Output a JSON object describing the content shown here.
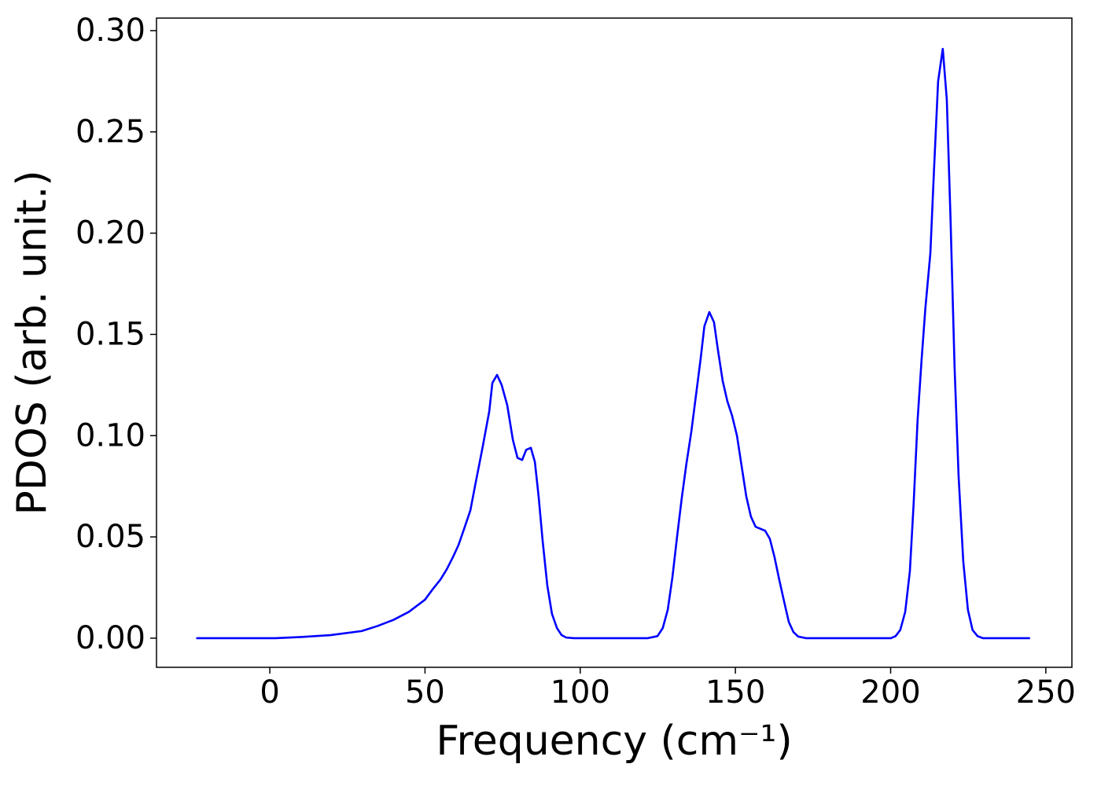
{
  "chart_data": {
    "type": "line",
    "xlabel": "Frequency (cm⁻¹)",
    "ylabel": "PDOS (arb. unit.)",
    "xlim": [
      -36.5,
      258.4
    ],
    "ylim": [
      -0.0144,
      0.3062
    ],
    "xticks": [
      0,
      50,
      100,
      150,
      200,
      250
    ],
    "yticks": [
      {
        "value": 0,
        "label": "0.00"
      },
      0.05,
      {
        "value": 0.1,
        "label": "0.10"
      },
      0.15,
      {
        "value": 0.2,
        "label": "0.20"
      },
      0.25,
      {
        "value": 0.3,
        "label": "0.30"
      }
    ],
    "grid": false,
    "series": [
      {
        "color": "#0000ff",
        "x": [
          -23.7,
          1.8,
          9.4,
          19.5,
          29.6,
          34.7,
          39.8,
          44.8,
          50,
          52.4,
          55,
          57,
          59,
          60.8,
          62.6,
          64.6,
          66.1,
          68.4,
          70.7,
          71.7,
          73.2,
          74.7,
          76.5,
          78.3,
          79.8,
          81.3,
          82.6,
          84.1,
          85.4,
          86.6,
          87.9,
          89.4,
          90.9,
          92.5,
          94,
          95.5,
          98,
          121.8,
          124.9,
          126.6,
          128.2,
          129.7,
          131.2,
          132.7,
          134.2,
          135.8,
          137.3,
          138.8,
          140,
          141.6,
          143.1,
          144.4,
          145.9,
          147.4,
          148.9,
          150.5,
          152,
          153.5,
          155,
          156.5,
          158.1,
          159.6,
          161.1,
          162.6,
          164.1,
          165.7,
          167.2,
          168.7,
          170.2,
          172.7,
          200.1,
          201.6,
          203.1,
          204.7,
          206.2,
          207.4,
          208.7,
          210,
          211.2,
          212.8,
          214,
          215.3,
          216.8,
          218.1,
          219.3,
          220.6,
          221.9,
          223.4,
          224.9,
          226.4,
          228,
          229.7,
          244.9
        ],
        "values": [
          0,
          0,
          0.0005,
          0.0015,
          0.0035,
          0.006,
          0.009,
          0.013,
          0.019,
          0.024,
          0.029,
          0.034,
          0.04,
          0.046,
          0.054,
          0.063,
          0.075,
          0.093,
          0.112,
          0.126,
          0.13,
          0.125,
          0.115,
          0.098,
          0.089,
          0.088,
          0.093,
          0.094,
          0.087,
          0.07,
          0.048,
          0.026,
          0.012,
          0.005,
          0.0015,
          0.0003,
          0,
          0,
          0.001,
          0.005,
          0.014,
          0.03,
          0.05,
          0.069,
          0.086,
          0.102,
          0.12,
          0.138,
          0.154,
          0.161,
          0.156,
          0.142,
          0.127,
          0.117,
          0.11,
          0.1,
          0.085,
          0.07,
          0.06,
          0.055,
          0.054,
          0.053,
          0.049,
          0.04,
          0.029,
          0.018,
          0.008,
          0.003,
          0.0008,
          0,
          0,
          0.001,
          0.004,
          0.013,
          0.033,
          0.066,
          0.108,
          0.138,
          0.163,
          0.19,
          0.232,
          0.275,
          0.291,
          0.266,
          0.207,
          0.134,
          0.08,
          0.038,
          0.014,
          0.004,
          0.001,
          0,
          0
        ]
      }
    ]
  }
}
